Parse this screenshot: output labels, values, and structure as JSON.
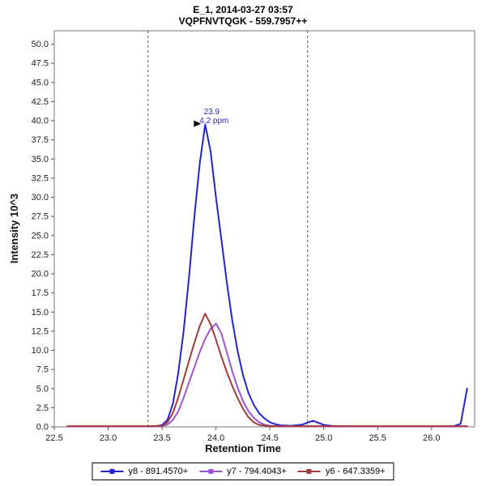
{
  "header": {
    "title_line1": "E_1, 2014-03-27 03:57",
    "title_line2": "VQPFNVTQGK - 559.7957++"
  },
  "chart_data": {
    "type": "line",
    "title": "E_1, 2014-03-27 03:57",
    "subtitle": "VQPFNVTQGK - 559.7957++",
    "xlabel": "Retention Time",
    "ylabel": "Intensity 10^3",
    "xlim": [
      22.5,
      26.4
    ],
    "ylim": [
      0,
      51.75
    ],
    "xticks": [
      22.5,
      23.0,
      23.5,
      24.0,
      24.5,
      25.0,
      25.5,
      26.0
    ],
    "yticks": [
      0.0,
      2.5,
      5.0,
      7.5,
      10.0,
      12.5,
      15.0,
      17.5,
      20.0,
      22.5,
      25.0,
      27.5,
      30.0,
      32.5,
      35.0,
      37.5,
      40.0,
      42.5,
      45.0,
      47.5,
      50.0
    ],
    "grid": false,
    "legend_position": "bottom",
    "integration_boundaries": [
      23.37,
      24.85
    ],
    "annotation": {
      "x": 23.9,
      "y": 39.5,
      "line1": "23.9",
      "line2": "4.2 ppm",
      "color": "#2a2ad4"
    },
    "boundary_color": "#555555",
    "series": [
      {
        "name": "y8",
        "label": "y8 - 891.4570+",
        "color": "#2424cc",
        "points": [
          [
            22.62,
            0.05
          ],
          [
            22.9,
            0.05
          ],
          [
            23.2,
            0.05
          ],
          [
            23.37,
            0.05
          ],
          [
            23.45,
            0.1
          ],
          [
            23.5,
            0.25
          ],
          [
            23.55,
            0.9
          ],
          [
            23.6,
            3.0
          ],
          [
            23.65,
            7.0
          ],
          [
            23.7,
            12.5
          ],
          [
            23.75,
            19.5
          ],
          [
            23.8,
            27.5
          ],
          [
            23.85,
            34.5
          ],
          [
            23.9,
            39.5
          ],
          [
            23.95,
            36.0
          ],
          [
            24.0,
            30.0
          ],
          [
            24.05,
            24.5
          ],
          [
            24.1,
            19.0
          ],
          [
            24.15,
            14.0
          ],
          [
            24.2,
            10.0
          ],
          [
            24.25,
            6.8
          ],
          [
            24.3,
            4.5
          ],
          [
            24.35,
            2.9
          ],
          [
            24.4,
            1.8
          ],
          [
            24.45,
            1.1
          ],
          [
            24.5,
            0.6
          ],
          [
            24.55,
            0.35
          ],
          [
            24.6,
            0.2
          ],
          [
            24.7,
            0.15
          ],
          [
            24.8,
            0.3
          ],
          [
            24.9,
            0.8
          ],
          [
            25.0,
            0.25
          ],
          [
            25.1,
            0.1
          ],
          [
            25.3,
            0.05
          ],
          [
            25.6,
            0.05
          ],
          [
            26.0,
            0.05
          ],
          [
            26.2,
            0.05
          ],
          [
            26.27,
            0.4
          ],
          [
            26.33,
            5.0
          ]
        ]
      },
      {
        "name": "y7",
        "label": "y7 - 794.4043+",
        "color": "#a052d4",
        "points": [
          [
            22.62,
            0.05
          ],
          [
            23.0,
            0.05
          ],
          [
            23.4,
            0.05
          ],
          [
            23.5,
            0.1
          ],
          [
            23.55,
            0.3
          ],
          [
            23.6,
            0.9
          ],
          [
            23.65,
            2.0
          ],
          [
            23.7,
            3.8
          ],
          [
            23.75,
            5.8
          ],
          [
            23.8,
            7.8
          ],
          [
            23.85,
            9.8
          ],
          [
            23.9,
            11.5
          ],
          [
            23.95,
            12.8
          ],
          [
            24.0,
            13.5
          ],
          [
            24.05,
            12.2
          ],
          [
            24.1,
            9.8
          ],
          [
            24.15,
            7.3
          ],
          [
            24.2,
            5.2
          ],
          [
            24.25,
            3.4
          ],
          [
            24.3,
            2.1
          ],
          [
            24.35,
            1.2
          ],
          [
            24.4,
            0.6
          ],
          [
            24.45,
            0.3
          ],
          [
            24.5,
            0.15
          ],
          [
            24.6,
            0.05
          ],
          [
            25.0,
            0.05
          ],
          [
            25.5,
            0.05
          ],
          [
            26.0,
            0.05
          ],
          [
            26.33,
            0.05
          ]
        ]
      },
      {
        "name": "y6",
        "label": "y6 - 647.3359+",
        "color": "#a23b3b",
        "points": [
          [
            22.62,
            0.1
          ],
          [
            23.0,
            0.1
          ],
          [
            23.4,
            0.1
          ],
          [
            23.5,
            0.15
          ],
          [
            23.55,
            0.6
          ],
          [
            23.6,
            1.8
          ],
          [
            23.65,
            3.8
          ],
          [
            23.7,
            6.2
          ],
          [
            23.75,
            8.6
          ],
          [
            23.8,
            11.0
          ],
          [
            23.85,
            13.2
          ],
          [
            23.9,
            14.8
          ],
          [
            23.95,
            13.4
          ],
          [
            24.0,
            11.4
          ],
          [
            24.05,
            9.2
          ],
          [
            24.1,
            7.2
          ],
          [
            24.15,
            5.4
          ],
          [
            24.2,
            3.8
          ],
          [
            24.25,
            2.4
          ],
          [
            24.3,
            1.3
          ],
          [
            24.35,
            0.6
          ],
          [
            24.4,
            0.25
          ],
          [
            24.5,
            0.1
          ],
          [
            24.7,
            0.1
          ],
          [
            25.0,
            0.1
          ],
          [
            25.5,
            0.1
          ],
          [
            26.0,
            0.1
          ],
          [
            26.33,
            0.1
          ]
        ]
      }
    ]
  }
}
